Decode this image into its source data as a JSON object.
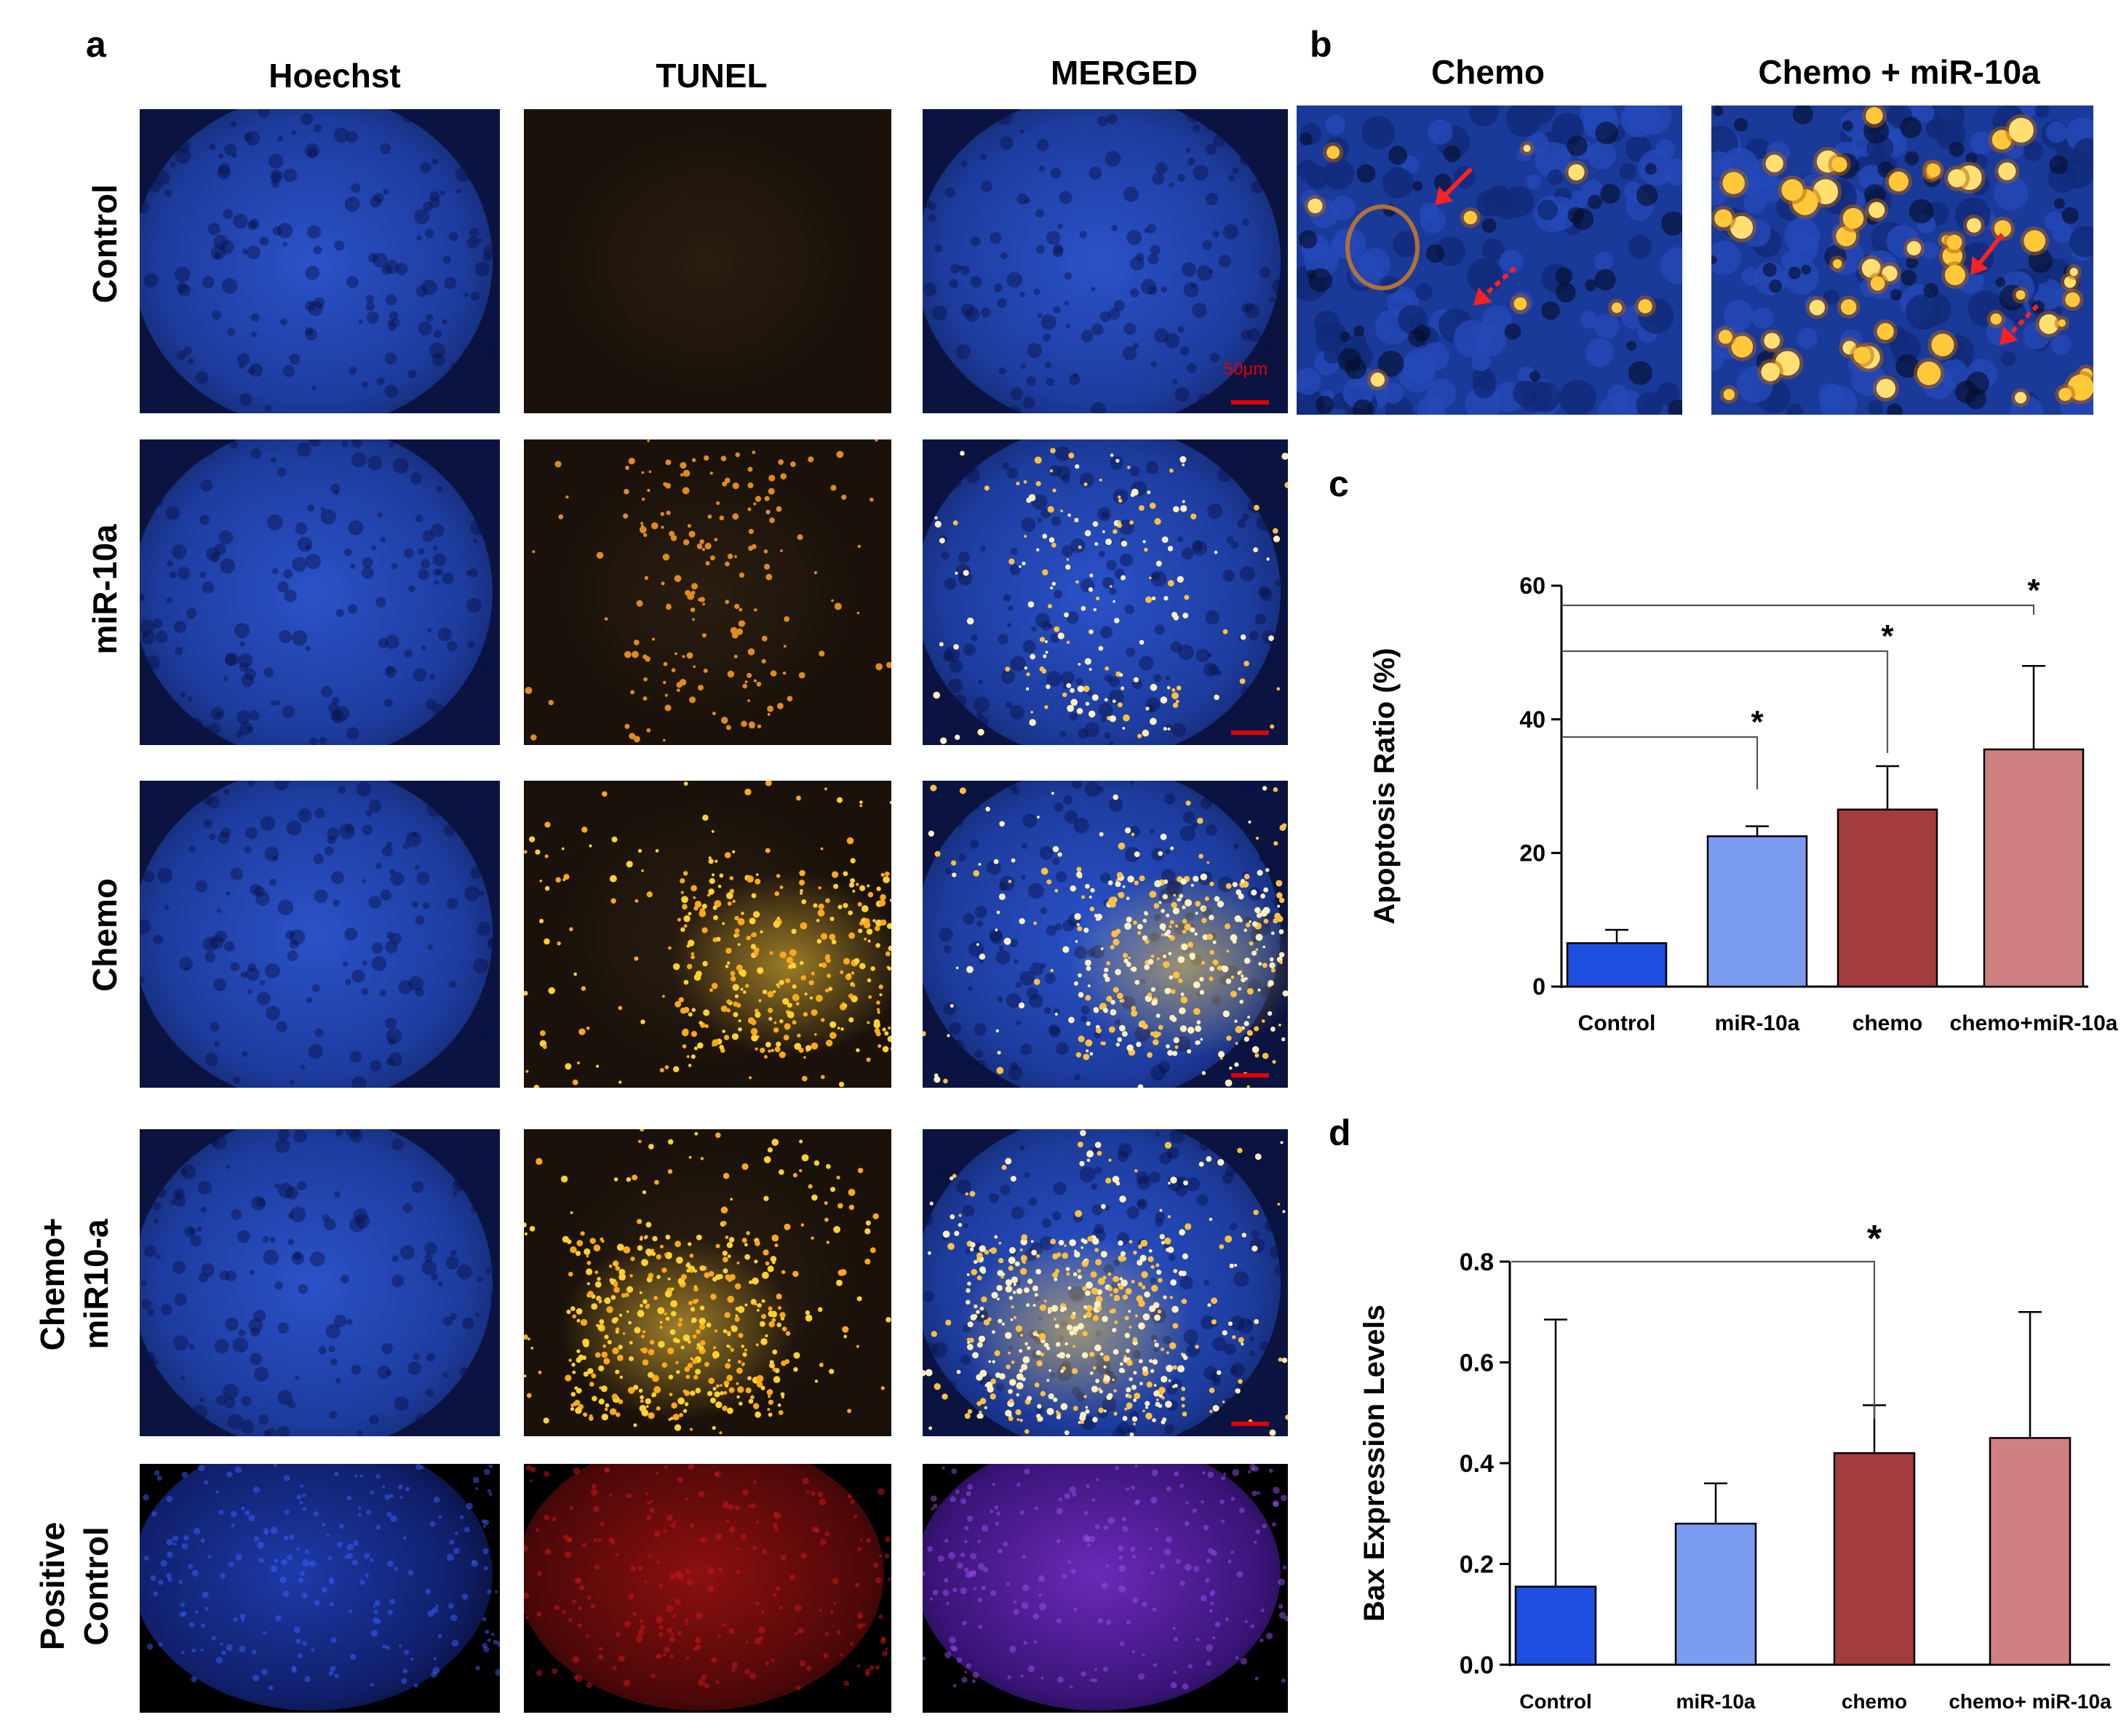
{
  "panels": {
    "a": {
      "letter": "a",
      "columns": [
        "Hoechst",
        "TUNEL",
        "MERGED"
      ],
      "rows": [
        {
          "lines": [
            "Control"
          ]
        },
        {
          "lines": [
            "miR-10a"
          ]
        },
        {
          "lines": [
            "Chemo"
          ]
        },
        {
          "lines": [
            "Chemo+",
            "miR10-a"
          ]
        },
        {
          "lines": [
            "Positive",
            "Control"
          ]
        }
      ],
      "scale_bar": "50μm"
    },
    "b": {
      "letter": "b",
      "titles": [
        "Chemo",
        "Chemo + miR-10a"
      ]
    },
    "c": {
      "letter": "c"
    },
    "d": {
      "letter": "d"
    }
  },
  "colors": {
    "control": "#1f4fe0",
    "mir10a": "#7b9cf0",
    "chemo": "#a33c3f",
    "chemo_mir10a": "#cf7f80",
    "nuclei_blue": "#1c3fa8",
    "tunel_orange": "#ffb020",
    "scale_red": "#e00000"
  },
  "chart_data": [
    {
      "id": "c",
      "type": "bar",
      "categories": [
        "Control",
        "miR-10a",
        "chemo",
        "chemo+miR-10a"
      ],
      "values": [
        6.5,
        22.5,
        26.5,
        35.5
      ],
      "errors": [
        2,
        1.5,
        6.5,
        12.5
      ],
      "title": "",
      "xlabel": "",
      "ylabel": "Apoptosis Ratio (%)",
      "ylim": [
        0,
        60
      ],
      "yticks": [
        0,
        20,
        40,
        60
      ],
      "significance": [
        {
          "from": 0,
          "to": 1,
          "label": "*"
        },
        {
          "from": 0,
          "to": 2,
          "label": "*"
        },
        {
          "from": 0,
          "to": 3,
          "label": "*"
        }
      ]
    },
    {
      "id": "d",
      "type": "bar",
      "categories": [
        "Control",
        "miR-10a",
        "chemo",
        "chemo+ miR-10a"
      ],
      "values": [
        0.155,
        0.28,
        0.42,
        0.45
      ],
      "errors": [
        0.53,
        0.08,
        0.095,
        0.25
      ],
      "title": "",
      "xlabel": "",
      "ylabel": "Bax Expression Levels",
      "ylim": [
        0,
        0.8
      ],
      "yticks": [
        "0.0",
        "0.2",
        "0.4",
        "0.6",
        "0.8"
      ],
      "significance": [
        {
          "from": 0,
          "to": 2,
          "label": "*"
        }
      ]
    }
  ]
}
